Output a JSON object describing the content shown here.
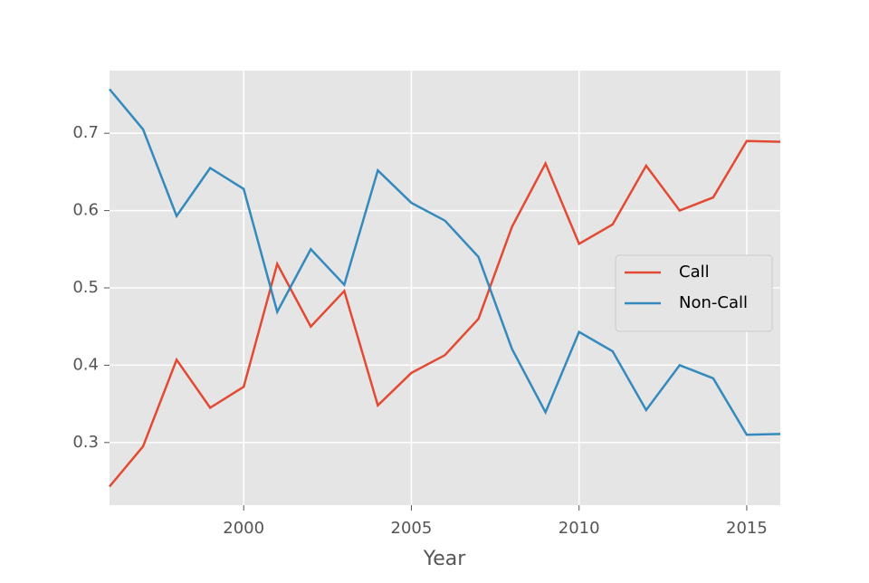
{
  "chart_data": {
    "type": "line",
    "xlabel": "Year",
    "x": [
      1996,
      1997,
      1998,
      1999,
      2000,
      2001,
      2002,
      2003,
      2004,
      2005,
      2006,
      2007,
      2008,
      2009,
      2010,
      2011,
      2012,
      2013,
      2014,
      2015,
      2016
    ],
    "series": [
      {
        "name": "Call",
        "color": "#E24A33",
        "values": [
          0.243,
          0.295,
          0.407,
          0.345,
          0.372,
          0.531,
          0.45,
          0.496,
          0.348,
          0.39,
          0.413,
          0.46,
          0.579,
          0.661,
          0.557,
          0.582,
          0.658,
          0.6,
          0.617,
          0.69,
          0.689
        ]
      },
      {
        "name": "Non-Call",
        "color": "#348ABD",
        "values": [
          0.757,
          0.705,
          0.593,
          0.655,
          0.628,
          0.469,
          0.55,
          0.504,
          0.652,
          0.61,
          0.587,
          0.54,
          0.421,
          0.339,
          0.443,
          0.418,
          0.342,
          0.4,
          0.383,
          0.31,
          0.311
        ]
      }
    ],
    "xlim": [
      1996,
      2016
    ],
    "xticks": [
      2000,
      2005,
      2010,
      2015
    ],
    "ylim": [
      0.219,
      0.781
    ],
    "yticks": [
      0.3,
      0.4,
      0.5,
      0.6,
      0.7
    ],
    "grid": true,
    "legend": "right"
  }
}
